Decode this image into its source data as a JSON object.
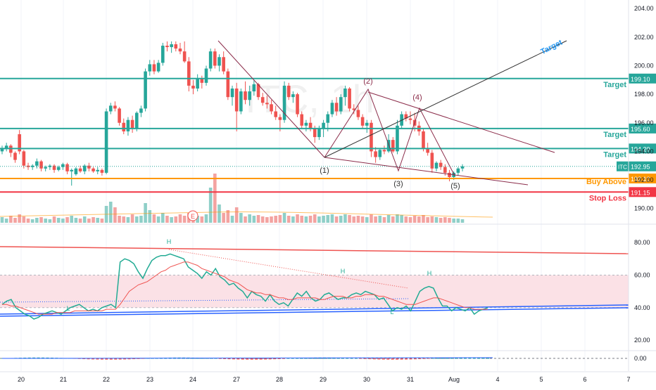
{
  "chart_data": [
    {
      "type": "candlestick",
      "symbol_watermark": "ITC, 1h",
      "price_axis_ticks": [
        "204.00",
        "202.00",
        "200.00",
        "198.00",
        "196.00",
        "194.00",
        "192.00",
        "190.00"
      ],
      "ylim": [
        189.0,
        204.6
      ],
      "last_price": "192.95",
      "series": [
        {
          "name": "ITC",
          "ohlc": [
            [
              194.0,
              194.4,
              193.8,
              194.2
            ],
            [
              194.2,
              194.6,
              194.0,
              194.4
            ],
            [
              194.4,
              194.5,
              193.6,
              193.9
            ],
            [
              193.9,
              194.0,
              193.2,
              193.4
            ],
            [
              195.2,
              195.5,
              193.8,
              194.0
            ],
            [
              194.0,
              194.1,
              192.8,
              193.0
            ],
            [
              193.0,
              193.2,
              192.7,
              192.9
            ],
            [
              192.9,
              193.1,
              192.7,
              193.0
            ],
            [
              193.0,
              193.5,
              192.8,
              193.3
            ],
            [
              193.3,
              193.4,
              192.6,
              192.8
            ],
            [
              192.8,
              193.0,
              192.6,
              192.9
            ],
            [
              192.9,
              193.1,
              192.7,
              193.0
            ],
            [
              193.0,
              193.1,
              192.5,
              192.7
            ],
            [
              192.7,
              193.0,
              192.6,
              192.9
            ],
            [
              192.9,
              193.2,
              192.7,
              193.1
            ],
            [
              193.1,
              193.2,
              192.4,
              192.6
            ],
            [
              192.6,
              192.8,
              191.6,
              192.7
            ],
            [
              192.4,
              192.9,
              192.3,
              192.8
            ],
            [
              192.8,
              193.0,
              192.5,
              192.6
            ],
            [
              192.6,
              193.1,
              192.4,
              193.0
            ],
            [
              193.0,
              193.2,
              192.6,
              192.8
            ],
            [
              192.8,
              192.9,
              192.5,
              192.6
            ],
            [
              192.6,
              192.9,
              192.4,
              192.7
            ],
            [
              192.7,
              192.8,
              192.3,
              192.5
            ],
            [
              192.5,
              197.0,
              192.4,
              196.8
            ],
            [
              196.8,
              197.4,
              196.6,
              197.2
            ],
            [
              197.2,
              197.5,
              196.8,
              197.0
            ],
            [
              197.0,
              197.1,
              195.8,
              196.0
            ],
            [
              196.0,
              196.3,
              195.2,
              195.4
            ],
            [
              195.4,
              196.4,
              195.1,
              196.2
            ],
            [
              196.2,
              196.5,
              195.3,
              195.6
            ],
            [
              195.6,
              196.8,
              195.4,
              196.7
            ],
            [
              196.7,
              197.2,
              196.4,
              197.0
            ],
            [
              197.0,
              199.8,
              196.8,
              199.6
            ],
            [
              199.6,
              200.4,
              199.3,
              200.1
            ],
            [
              200.1,
              200.4,
              199.4,
              199.6
            ],
            [
              199.6,
              200.4,
              199.5,
              200.2
            ],
            [
              200.2,
              201.6,
              200.0,
              201.4
            ],
            [
              201.4,
              201.7,
              201.0,
              201.3
            ],
            [
              201.3,
              201.7,
              200.9,
              201.5
            ],
            [
              201.5,
              201.7,
              201.0,
              201.2
            ],
            [
              201.2,
              201.6,
              200.8,
              201.0
            ],
            [
              201.0,
              201.7,
              200.2,
              200.3
            ],
            [
              200.3,
              200.6,
              198.2,
              198.6
            ],
            [
              198.6,
              199.0,
              198.0,
              198.4
            ],
            [
              198.4,
              199.4,
              198.2,
              199.1
            ],
            [
              199.1,
              199.3,
              198.4,
              198.8
            ],
            [
              198.8,
              200.0,
              198.6,
              199.8
            ],
            [
              199.8,
              201.2,
              199.6,
              201.0
            ],
            [
              201.0,
              201.2,
              199.8,
              200.0
            ],
            [
              200.0,
              200.8,
              199.6,
              200.6
            ],
            [
              200.6,
              201.0,
              199.4,
              199.6
            ],
            [
              199.6,
              199.8,
              197.6,
              197.8
            ],
            [
              197.8,
              198.6,
              197.2,
              198.4
            ],
            [
              198.4,
              198.8,
              195.4,
              196.8
            ],
            [
              196.8,
              198.4,
              196.6,
              198.2
            ],
            [
              198.2,
              198.9,
              197.3,
              197.6
            ],
            [
              197.6,
              198.6,
              197.2,
              198.2
            ],
            [
              198.2,
              199.0,
              197.9,
              198.7
            ],
            [
              198.7,
              198.8,
              197.6,
              197.8
            ],
            [
              197.8,
              198.1,
              197.2,
              197.4
            ],
            [
              197.4,
              197.9,
              197.0,
              197.3
            ],
            [
              197.3,
              197.6,
              196.6,
              196.8
            ],
            [
              196.8,
              197.2,
              196.2,
              196.4
            ],
            [
              196.4,
              196.6,
              195.4,
              196.2
            ],
            [
              196.2,
              198.9,
              196.0,
              198.6
            ],
            [
              198.6,
              198.8,
              197.6,
              197.8
            ],
            [
              197.8,
              198.2,
              197.4,
              198.0
            ],
            [
              198.0,
              198.1,
              196.4,
              196.6
            ],
            [
              196.6,
              196.8,
              195.6,
              195.8
            ],
            [
              195.8,
              196.2,
              195.4,
              196.0
            ],
            [
              196.0,
              196.4,
              195.4,
              195.6
            ],
            [
              195.6,
              195.8,
              194.6,
              195.0
            ],
            [
              195.0,
              195.8,
              194.8,
              195.6
            ],
            [
              195.6,
              196.2,
              195.0,
              196.0
            ],
            [
              196.0,
              196.8,
              195.4,
              196.6
            ],
            [
              196.6,
              197.6,
              196.4,
              197.4
            ],
            [
              197.4,
              197.8,
              196.5,
              196.8
            ],
            [
              196.8,
              198.0,
              196.6,
              197.8
            ],
            [
              197.8,
              198.6,
              197.2,
              198.4
            ],
            [
              198.4,
              198.5,
              196.8,
              197.0
            ],
            [
              197.0,
              197.3,
              196.6,
              196.9
            ],
            [
              196.9,
              197.2,
              196.2,
              196.4
            ],
            [
              196.4,
              196.6,
              195.6,
              195.8
            ],
            [
              195.8,
              196.2,
              195.3,
              196.0
            ],
            [
              196.0,
              196.2,
              193.6,
              194.0
            ],
            [
              194.0,
              194.3,
              193.2,
              193.6
            ],
            [
              193.6,
              194.2,
              193.4,
              194.1
            ],
            [
              194.1,
              194.4,
              193.8,
              194.0
            ],
            [
              194.0,
              195.2,
              193.9,
              194.8
            ],
            [
              194.8,
              195.0,
              193.9,
              194.0
            ],
            [
              194.0,
              196.2,
              193.8,
              195.8
            ],
            [
              195.8,
              196.8,
              195.6,
              196.6
            ],
            [
              196.6,
              196.8,
              196.1,
              196.3
            ],
            [
              196.3,
              196.8,
              195.9,
              196.2
            ],
            [
              196.2,
              196.7,
              195.4,
              195.8
            ],
            [
              195.8,
              196.1,
              195.1,
              195.4
            ],
            [
              195.4,
              195.6,
              194.0,
              194.2
            ],
            [
              194.2,
              194.6,
              193.7,
              193.9
            ],
            [
              193.9,
              194.1,
              192.5,
              192.8
            ],
            [
              192.8,
              193.3,
              192.6,
              193.2
            ],
            [
              193.2,
              193.4,
              192.7,
              192.9
            ],
            [
              192.9,
              193.1,
              192.3,
              192.5
            ],
            [
              192.5,
              192.7,
              191.9,
              192.2
            ],
            [
              192.2,
              192.6,
              192.0,
              192.5
            ],
            [
              192.5,
              192.9,
              192.3,
              192.8
            ],
            [
              192.8,
              193.1,
              192.6,
              192.95
            ]
          ]
        }
      ],
      "horizontal_levels": [
        {
          "value": 199.1,
          "label": "199.10",
          "annotation": "Target",
          "color": "#26a69a"
        },
        {
          "value": 195.6,
          "label": "195.60",
          "annotation": "Target",
          "color": "#26a69a"
        },
        {
          "value": 194.2,
          "label": "194.20",
          "annotation": "Target",
          "color": "#26a69a"
        },
        {
          "value": 192.1,
          "label": "192.10",
          "annotation": "Buy Above",
          "color": "#ff9800"
        },
        {
          "value": 191.15,
          "label": "191.15",
          "annotation": "Stop Loss",
          "color": "#f23645"
        }
      ],
      "wave_labels": [
        "(1)",
        "(2)",
        "(3)",
        "(4)",
        "(5)"
      ],
      "trendline_label": "Target",
      "event_marker": "E",
      "dividend_marker": "D",
      "colors": {
        "up": "#26a69a",
        "down": "#ef5350",
        "volume_up": "#8fcfc8",
        "volume_down": "#f3a3a1",
        "pattern": "#8b2c4a"
      }
    },
    {
      "type": "line",
      "name": "RSI",
      "y_axis_ticks": [
        "80.00",
        "60.00",
        "40.00",
        "20.00"
      ],
      "ylim": [
        14,
        90
      ],
      "band": [
        40,
        60
      ],
      "pivot_labels": [
        "H",
        "H",
        "H",
        "L",
        "L"
      ],
      "colors": {
        "rsi": "#22ab94",
        "signal": "#ef5350",
        "band": "#fbe1e6",
        "trend_top": "#ef5350",
        "trend_bottom": "#2962ff"
      }
    },
    {
      "type": "line",
      "name": "MACD",
      "y_axis_ticks": [
        "0.00"
      ],
      "zero_line": 0
    }
  ],
  "x_axis": {
    "labels": [
      "20",
      "21",
      "22",
      "23",
      "24",
      "27",
      "28",
      "29",
      "30",
      "31",
      "Aug",
      "4",
      "5",
      "6",
      "7"
    ]
  }
}
